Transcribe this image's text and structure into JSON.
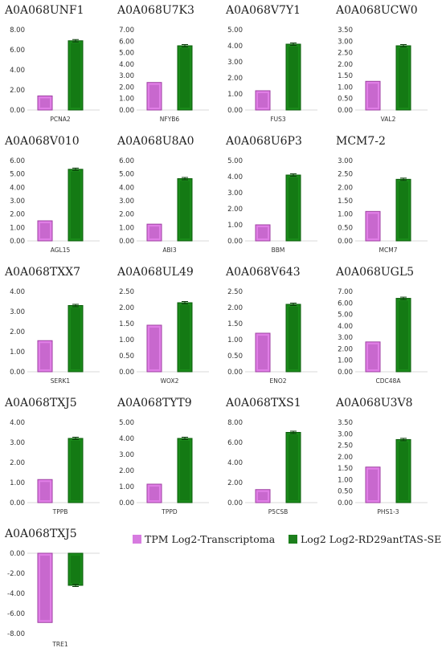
{
  "colors": {
    "tpm_fill": "#e07ee6",
    "tpm_dark": "#9c3fa0",
    "log2_fill": "#1a8a1a",
    "log2_dark": "#0b5c0b",
    "axis": "#d9d9d9"
  },
  "legend": {
    "items": [
      {
        "label": "TPM Log2-Transcriptoma",
        "color": "#d77be0"
      },
      {
        "label": "Log2 Log2-RD29antTAS-SE",
        "color": "#1c7f1c"
      }
    ]
  },
  "chart_data": [
    {
      "type": "bar",
      "title": "A0A068UNF1",
      "categories": [
        "PCNA2"
      ],
      "series": [
        {
          "name": "TPM Log2-Transcriptoma",
          "values": [
            1.4
          ]
        },
        {
          "name": "Log2 Log2-RD29antTAS-SE",
          "values": [
            6.9
          ]
        }
      ],
      "ylim": [
        0,
        8
      ],
      "yticks": [
        "0.00",
        "2.00",
        "4.00",
        "6.00",
        "8.00"
      ]
    },
    {
      "type": "bar",
      "title": "A0A068U7K3",
      "categories": [
        "NFYB6"
      ],
      "series": [
        {
          "name": "TPM Log2-Transcriptoma",
          "values": [
            2.4
          ]
        },
        {
          "name": "Log2 Log2-RD29antTAS-SE",
          "values": [
            5.6
          ]
        }
      ],
      "ylim": [
        0,
        7
      ],
      "yticks": [
        "0.00",
        "1.00",
        "2.00",
        "3.00",
        "4.00",
        "5.00",
        "6.00",
        "7.00"
      ]
    },
    {
      "type": "bar",
      "title": "A0A068V7Y1",
      "categories": [
        "FUS3"
      ],
      "series": [
        {
          "name": "TPM Log2-Transcriptoma",
          "values": [
            1.2
          ]
        },
        {
          "name": "Log2 Log2-RD29antTAS-SE",
          "values": [
            4.1
          ]
        }
      ],
      "ylim": [
        0,
        5
      ],
      "yticks": [
        "0.00",
        "1.00",
        "2.00",
        "3.00",
        "4.00",
        "5.00"
      ]
    },
    {
      "type": "bar",
      "title": "A0A068UCW0",
      "categories": [
        "VAL2"
      ],
      "series": [
        {
          "name": "TPM Log2-Transcriptoma",
          "values": [
            1.25
          ]
        },
        {
          "name": "Log2 Log2-RD29antTAS-SE",
          "values": [
            2.8
          ]
        }
      ],
      "ylim": [
        0,
        3.5
      ],
      "yticks": [
        "0.00",
        "0.50",
        "1.00",
        "1.50",
        "2.00",
        "2.50",
        "3.00",
        "3.50"
      ]
    },
    {
      "type": "bar",
      "title": "A0A068V010",
      "categories": [
        "AGL15"
      ],
      "series": [
        {
          "name": "TPM Log2-Transcriptoma",
          "values": [
            1.5
          ]
        },
        {
          "name": "Log2 Log2-RD29antTAS-SE",
          "values": [
            5.35
          ]
        }
      ],
      "ylim": [
        0,
        6
      ],
      "yticks": [
        "0.00",
        "1.00",
        "2.00",
        "3.00",
        "4.00",
        "5.00",
        "6.00"
      ]
    },
    {
      "type": "bar",
      "title": "A0A068U8A0",
      "categories": [
        "ABI3"
      ],
      "series": [
        {
          "name": "TPM Log2-Transcriptoma",
          "values": [
            1.25
          ]
        },
        {
          "name": "Log2 Log2-RD29antTAS-SE",
          "values": [
            4.65
          ]
        }
      ],
      "ylim": [
        0,
        6
      ],
      "yticks": [
        "0.00",
        "1.00",
        "2.00",
        "3.00",
        "4.00",
        "5.00",
        "6.00"
      ]
    },
    {
      "type": "bar",
      "title": "A0A068U6P3",
      "categories": [
        "BBM"
      ],
      "series": [
        {
          "name": "TPM Log2-Transcriptoma",
          "values": [
            1.0
          ]
        },
        {
          "name": "Log2 Log2-RD29antTAS-SE",
          "values": [
            4.1
          ]
        }
      ],
      "ylim": [
        0,
        5
      ],
      "yticks": [
        "0.00",
        "1.00",
        "2.00",
        "3.00",
        "4.00",
        "5.00"
      ]
    },
    {
      "type": "bar",
      "title": "MCM7-2",
      "categories": [
        "MCM7"
      ],
      "series": [
        {
          "name": "TPM Log2-Transcriptoma",
          "values": [
            1.1
          ]
        },
        {
          "name": "Log2 Log2-RD29antTAS-SE",
          "values": [
            2.3
          ]
        }
      ],
      "ylim": [
        0,
        3
      ],
      "yticks": [
        "0.00",
        "0.50",
        "1.00",
        "1.50",
        "2.00",
        "2.50",
        "3.00"
      ]
    },
    {
      "type": "bar",
      "title": "A0A068TXX7",
      "categories": [
        "SERK1"
      ],
      "series": [
        {
          "name": "TPM Log2-Transcriptoma",
          "values": [
            1.55
          ]
        },
        {
          "name": "Log2 Log2-RD29antTAS-SE",
          "values": [
            3.3
          ]
        }
      ],
      "ylim": [
        0,
        4
      ],
      "yticks": [
        "0.00",
        "1.00",
        "2.00",
        "3.00",
        "4.00"
      ]
    },
    {
      "type": "bar",
      "title": "A0A068UL49",
      "categories": [
        "WOX2"
      ],
      "series": [
        {
          "name": "TPM Log2-Transcriptoma",
          "values": [
            1.45
          ]
        },
        {
          "name": "Log2 Log2-RD29antTAS-SE",
          "values": [
            2.15
          ]
        }
      ],
      "ylim": [
        0,
        2.5
      ],
      "yticks": [
        "0.00",
        "0.50",
        "1.00",
        "1.50",
        "2.00",
        "2.50"
      ]
    },
    {
      "type": "bar",
      "title": "A0A068V643",
      "categories": [
        "ENO2"
      ],
      "series": [
        {
          "name": "TPM Log2-Transcriptoma",
          "values": [
            1.2
          ]
        },
        {
          "name": "Log2 Log2-RD29antTAS-SE",
          "values": [
            2.1
          ]
        }
      ],
      "ylim": [
        0,
        2.5
      ],
      "yticks": [
        "0.00",
        "0.50",
        "1.00",
        "1.50",
        "2.00",
        "2.50"
      ]
    },
    {
      "type": "bar",
      "title": "A0A068UGL5",
      "categories": [
        "CDC48A"
      ],
      "series": [
        {
          "name": "TPM Log2-Transcriptoma",
          "values": [
            2.6
          ]
        },
        {
          "name": "Log2 Log2-RD29antTAS-SE",
          "values": [
            6.4
          ]
        }
      ],
      "ylim": [
        0,
        7
      ],
      "yticks": [
        "0.00",
        "1.00",
        "2.00",
        "3.00",
        "4.00",
        "5.00",
        "6.00",
        "7.00"
      ]
    },
    {
      "type": "bar",
      "title": "A0A068TXJ5",
      "categories": [
        "TPPB"
      ],
      "series": [
        {
          "name": "TPM Log2-Transcriptoma",
          "values": [
            1.15
          ]
        },
        {
          "name": "Log2 Log2-RD29antTAS-SE",
          "values": [
            3.2
          ]
        }
      ],
      "ylim": [
        0,
        4
      ],
      "yticks": [
        "0.00",
        "1.00",
        "2.00",
        "3.00",
        "4.00"
      ]
    },
    {
      "type": "bar",
      "title": "A0A068TYT9",
      "categories": [
        "TPPD"
      ],
      "series": [
        {
          "name": "TPM Log2-Transcriptoma",
          "values": [
            1.15
          ]
        },
        {
          "name": "Log2 Log2-RD29antTAS-SE",
          "values": [
            4.0
          ]
        }
      ],
      "ylim": [
        0,
        5
      ],
      "yticks": [
        "0.00",
        "1.00",
        "2.00",
        "3.00",
        "4.00",
        "5.00"
      ]
    },
    {
      "type": "bar",
      "title": "A0A068TXS1",
      "categories": [
        "P5CSB"
      ],
      "series": [
        {
          "name": "TPM Log2-Transcriptoma",
          "values": [
            1.3
          ]
        },
        {
          "name": "Log2 Log2-RD29antTAS-SE",
          "values": [
            7.0
          ]
        }
      ],
      "ylim": [
        0,
        8
      ],
      "yticks": [
        "0.00",
        "2.00",
        "4.00",
        "6.00",
        "8.00"
      ]
    },
    {
      "type": "bar",
      "title": "A0A068U3V8",
      "categories": [
        "PHS1-3"
      ],
      "series": [
        {
          "name": "TPM Log2-Transcriptoma",
          "values": [
            1.55
          ]
        },
        {
          "name": "Log2 Log2-RD29antTAS-SE",
          "values": [
            2.75
          ]
        }
      ],
      "ylim": [
        0,
        3.5
      ],
      "yticks": [
        "0.00",
        "0.50",
        "1.00",
        "1.50",
        "2.00",
        "2.50",
        "3.00",
        "3.50"
      ]
    },
    {
      "type": "bar",
      "title": "A0A068TXJ5",
      "categories": [
        "TRE1"
      ],
      "series": [
        {
          "name": "TPM Log2-Transcriptoma",
          "values": [
            -6.9
          ]
        },
        {
          "name": "Log2 Log2-RD29antTAS-SE",
          "values": [
            -3.2
          ]
        }
      ],
      "ylim": [
        -8,
        0
      ],
      "yticks": [
        "0.00",
        "-2.00",
        "-4.00",
        "-6.00",
        "-8.00"
      ]
    }
  ]
}
